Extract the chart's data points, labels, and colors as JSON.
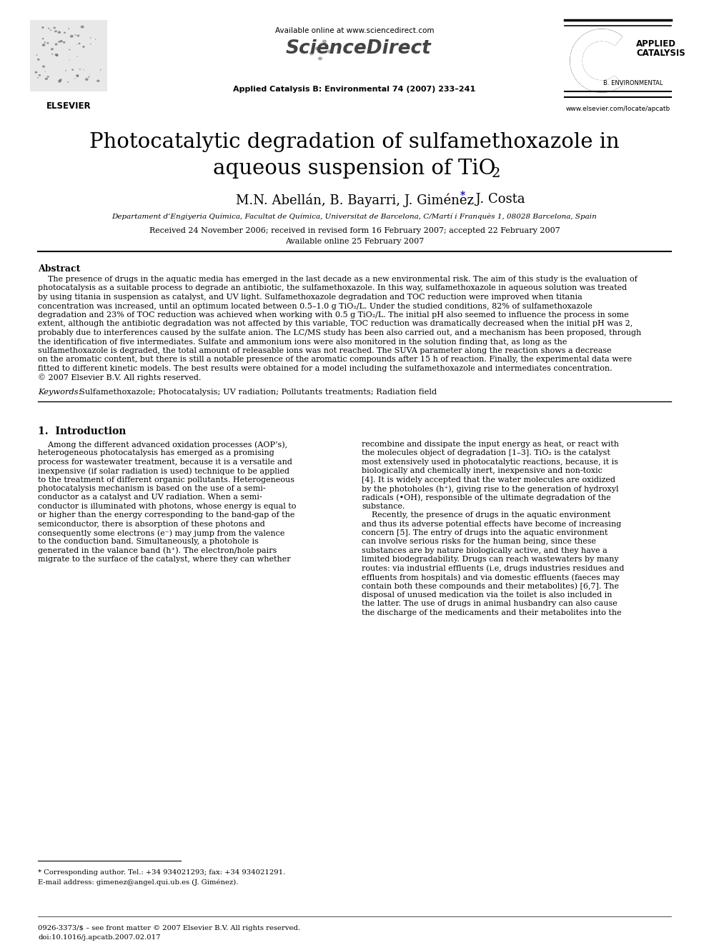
{
  "bg_color": "#ffffff",
  "header_available": "Available online at www.sciencedirect.com",
  "header_journal_ref": "Applied Catalysis B: Environmental 74 (2007) 233–241",
  "header_website": "www.elsevier.com/locate/apcatb",
  "title_line1": "Photocatalytic degradation of sulfamethoxazole in",
  "title_line2": "aqueous suspension of TiO",
  "title_sub": "2",
  "authors_main": "M.N. Abellán, B. Bayarri, J. Giménez",
  "authors_end": ", J. Costa",
  "affiliation": "Departament d’Engiyeria Química, Facultat de Química, Universitat de Barcelona, C/Martí i Franquès 1, 08028 Barcelona, Spain",
  "received": "Received 24 November 2006; received in revised form 16 February 2007; accepted 22 February 2007",
  "available_online": "Available online 25 February 2007",
  "abstract_title": "Abstract",
  "abstract_lines": [
    "    The presence of drugs in the aquatic media has emerged in the last decade as a new environmental risk. The aim of this study is the evaluation of",
    "photocatalysis as a suitable process to degrade an antibiotic, the sulfamethoxazole. In this way, sulfamethoxazole in aqueous solution was treated",
    "by using titania in suspension as catalyst, and UV light. Sulfamethoxazole degradation and TOC reduction were improved when titania",
    "concentration was increased, until an optimum located between 0.5–1.0 g TiO₂/L. Under the studied conditions, 82% of sulfamethoxazole",
    "degradation and 23% of TOC reduction was achieved when working with 0.5 g TiO₂/L. The initial pH also seemed to influence the process in some",
    "extent, although the antibiotic degradation was not affected by this variable, TOC reduction was dramatically decreased when the initial pH was 2,",
    "probably due to interferences caused by the sulfate anion. The LC/MS study has been also carried out, and a mechanism has been proposed, through",
    "the identification of five intermediates. Sulfate and ammonium ions were also monitored in the solution finding that, as long as the",
    "sulfamethoxazole is degraded, the total amount of releasable ions was not reached. The SUVA parameter along the reaction shows a decrease",
    "on the aromatic content, but there is still a notable presence of the aromatic compounds after 15 h of reaction. Finally, the experimental data were",
    "fitted to different kinetic models. The best results were obtained for a model including the sulfamethoxazole and intermediates concentration.",
    "© 2007 Elsevier B.V. All rights reserved."
  ],
  "keywords_label": "Keywords:",
  "keywords_text": "Sulfamethoxazole; Photocatalysis; UV radiation; Pollutants treatments; Radiation field",
  "section1_title": "1.  Introduction",
  "left_col_lines": [
    "    Among the different advanced oxidation processes (AOP’s),",
    "heterogeneous photocatalysis has emerged as a promising",
    "process for wastewater treatment, because it is a versatile and",
    "inexpensive (if solar radiation is used) technique to be applied",
    "to the treatment of different organic pollutants. Heterogeneous",
    "photocatalysis mechanism is based on the use of a semi-",
    "conductor as a catalyst and UV radiation. When a semi-",
    "conductor is illuminated with photons, whose energy is equal to",
    "or higher than the energy corresponding to the band-gap of the",
    "semiconductor, there is absorption of these photons and",
    "consequently some electrons (e⁻) may jump from the valence",
    "to the conduction band. Simultaneously, a photohole is",
    "generated in the valance band (h⁺). The electron/hole pairs",
    "migrate to the surface of the catalyst, where they can whether"
  ],
  "right_col_lines": [
    "recombine and dissipate the input energy as heat, or react with",
    "the molecules object of degradation [1–3]. TiO₂ is the catalyst",
    "most extensively used in photocatalytic reactions, because, it is",
    "biologically and chemically inert, inexpensive and non-toxic",
    "[4]. It is widely accepted that the water molecules are oxidized",
    "by the photoholes (h⁺), giving rise to the generation of hydroxyl",
    "radicals (•OH), responsible of the ultimate degradation of the",
    "substance.",
    "    Recently, the presence of drugs in the aquatic environment",
    "and thus its adverse potential effects have become of increasing",
    "concern [5]. The entry of drugs into the aquatic environment",
    "can involve serious risks for the human being, since these",
    "substances are by nature biologically active, and they have a",
    "limited biodegradability. Drugs can reach wastewaters by many",
    "routes: via industrial effluents (i.e, drugs industries residues and",
    "effluents from hospitals) and via domestic effluents (faeces may",
    "contain both these compounds and their metabolites) [6,7]. The",
    "disposal of unused medication via the toilet is also included in",
    "the latter. The use of drugs in animal husbandry can also cause",
    "the discharge of the medicaments and their metabolites into the"
  ],
  "footnote_line1": "* Corresponding author. Tel.: +34 934021293; fax: +34 934021291.",
  "footnote_line2": "E-mail address: gimenez@angel.qui.ub.es (J. Giménez).",
  "footer_left": "0926-3373/$ – see front matter © 2007 Elsevier B.V. All rights reserved.",
  "footer_doi": "doi:10.1016/j.apcatb.2007.02.017"
}
